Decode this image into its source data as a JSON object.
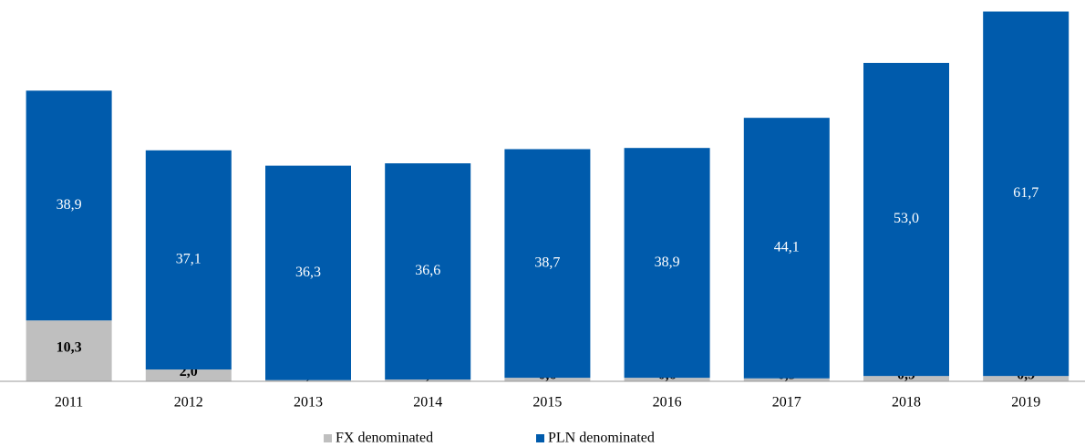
{
  "chart_data": {
    "type": "stacked_bar",
    "categories": [
      "2011",
      "2012",
      "2013",
      "2014",
      "2015",
      "2016",
      "2017",
      "2018",
      "2019"
    ],
    "series": [
      {
        "name": "FX denominated",
        "color": "#bfbfbf",
        "values": [
          10.3,
          2.0,
          0.2,
          0.3,
          0.6,
          0.6,
          0.5,
          0.9,
          0.9
        ],
        "value_labels": [
          "10,3",
          "2,0",
          "0,2",
          "0,3",
          "0,6",
          "0,6",
          "0,5",
          "0,9",
          "0,9"
        ]
      },
      {
        "name": "PLN denominated",
        "color": "#005bac",
        "values": [
          38.9,
          37.1,
          36.3,
          36.6,
          38.7,
          38.9,
          44.1,
          53.0,
          61.7
        ],
        "value_labels": [
          "38,9",
          "37,1",
          "36,3",
          "36,6",
          "38,7",
          "38,9",
          "44,1",
          "53,0",
          "61,7"
        ]
      }
    ],
    "ylim": [
      0,
      63
    ],
    "legend": "bottom"
  }
}
